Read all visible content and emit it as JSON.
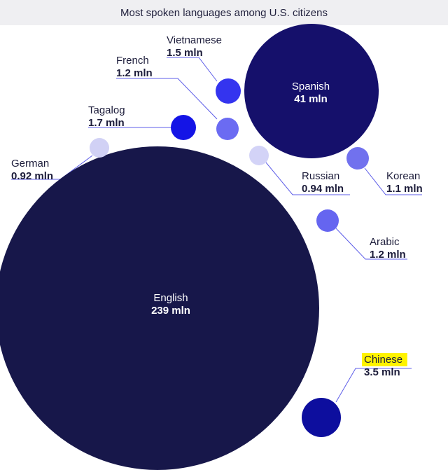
{
  "title": "Most spoken languages among U.S. citizens",
  "chart_data": {
    "type": "bubble",
    "unit": "mln",
    "items": [
      {
        "name": "English",
        "value": 239,
        "value_label": "239 mln",
        "color": "#17174a"
      },
      {
        "name": "Spanish",
        "value": 41,
        "value_label": "41 mln",
        "color": "#15106b"
      },
      {
        "name": "Chinese",
        "value": 3.5,
        "value_label": "3.5 mln",
        "color": "#0d0e9e",
        "highlight": "#fff300"
      },
      {
        "name": "Tagalog",
        "value": 1.7,
        "value_label": "1.7 mln",
        "color": "#1414e6"
      },
      {
        "name": "Vietnamese",
        "value": 1.5,
        "value_label": "1.5 mln",
        "color": "#3434ef"
      },
      {
        "name": "French",
        "value": 1.2,
        "value_label": "1.2 mln",
        "color": "#6b6bf2"
      },
      {
        "name": "Arabic",
        "value": 1.2,
        "value_label": "1.2 mln",
        "color": "#6565f0"
      },
      {
        "name": "Korean",
        "value": 1.1,
        "value_label": "1.1 mln",
        "color": "#7171ee"
      },
      {
        "name": "Russian",
        "value": 0.94,
        "value_label": "0.94 mln",
        "color": "#d3d3f7"
      },
      {
        "name": "German",
        "value": 0.92,
        "value_label": "0.92 mln",
        "color": "#d1d1f5"
      }
    ],
    "leader_color": "#5d5de8"
  }
}
